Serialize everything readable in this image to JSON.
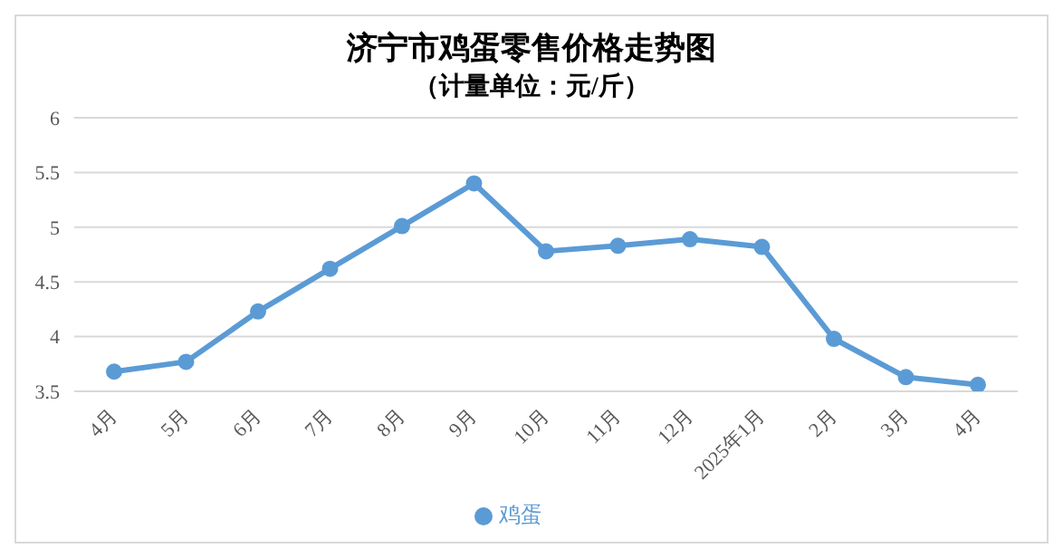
{
  "chart_data": {
    "type": "line",
    "title": "济宁市鸡蛋零售价格走势图",
    "subtitle": "（计量单位：元/斤）",
    "categories": [
      "4月",
      "5月",
      "6月",
      "7月",
      "8月",
      "9月",
      "10月",
      "11月",
      "12月",
      "2025年1月",
      "2月",
      "3月",
      "4月"
    ],
    "series": [
      {
        "name": "鸡蛋",
        "color": "#5b9bd5",
        "values": [
          3.68,
          3.77,
          4.23,
          4.62,
          5.01,
          5.4,
          4.78,
          4.83,
          4.89,
          4.82,
          3.98,
          3.63,
          3.56
        ]
      }
    ],
    "ylim": [
      3.5,
      6
    ],
    "yticks": [
      3.5,
      4,
      4.5,
      5,
      5.5,
      6
    ],
    "grid": "y",
    "legend": "bottom",
    "marker": "circle",
    "line_style": "solid"
  }
}
